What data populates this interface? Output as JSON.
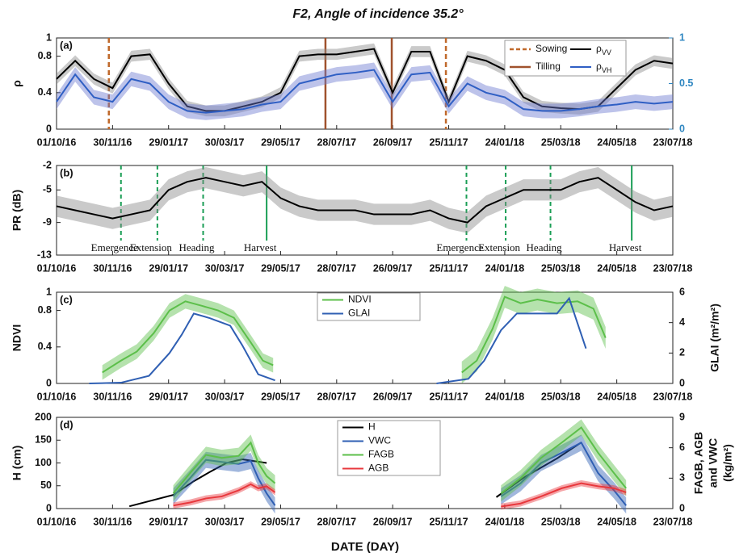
{
  "title": "F2, Angle of incidence 35.2°",
  "xlabel": "DATE (DAY)",
  "chart_data": [
    {
      "type": "line",
      "panel": "(a)",
      "ylabel": "ρ",
      "xlim": [
        "01/10/16",
        "23/07/18"
      ],
      "xticks": [
        "01/10/16",
        "30/11/16",
        "29/01/17",
        "30/03/17",
        "29/05/17",
        "28/07/17",
        "26/09/17",
        "25/11/17",
        "24/01/18",
        "25/03/18",
        "24/05/18",
        "23/07/18"
      ],
      "ylim": [
        0,
        1
      ],
      "yticks": [
        0,
        0.4,
        0.8,
        1
      ],
      "y2lim": [
        0,
        1
      ],
      "y2ticks": [
        0,
        0.5,
        1
      ],
      "y2color": "#2e86c1",
      "events": [
        {
          "name": "Sowing",
          "color": "#c0692b",
          "dashed": true,
          "x": [
            "26/11/16",
            "22/11/17"
          ]
        },
        {
          "name": "Tilling",
          "color": "#a0522d",
          "dashed": false,
          "x": [
            "16/07/17",
            "25/09/17"
          ]
        }
      ],
      "series": [
        {
          "name": "ρVV",
          "color": "#000000",
          "band": "#8a8a8a",
          "x": [
            "01/10/16",
            "21/10/16",
            "10/11/16",
            "30/11/16",
            "20/12/16",
            "09/01/17",
            "29/01/17",
            "18/02/17",
            "10/03/17",
            "30/03/17",
            "19/04/17",
            "09/05/17",
            "29/05/17",
            "18/06/17",
            "08/07/17",
            "28/07/17",
            "17/08/17",
            "06/09/17",
            "26/09/17",
            "16/10/17",
            "05/11/17",
            "25/11/17",
            "15/12/17",
            "04/01/18",
            "24/01/18",
            "13/02/18",
            "05/03/18",
            "25/03/18",
            "14/04/18",
            "04/05/18",
            "24/05/18",
            "13/06/18",
            "03/07/18",
            "23/07/18"
          ],
          "values": [
            0.55,
            0.75,
            0.55,
            0.45,
            0.8,
            0.82,
            0.5,
            0.25,
            0.2,
            0.2,
            0.25,
            0.3,
            0.4,
            0.8,
            0.82,
            0.82,
            0.85,
            0.88,
            0.4,
            0.85,
            0.85,
            0.3,
            0.8,
            0.75,
            0.65,
            0.35,
            0.25,
            0.23,
            0.22,
            0.25,
            0.45,
            0.65,
            0.75,
            0.72
          ],
          "errors": [
            0.06,
            0.06,
            0.06,
            0.06,
            0.06,
            0.06,
            0.06,
            0.06,
            0.06,
            0.06,
            0.06,
            0.06,
            0.06,
            0.06,
            0.06,
            0.06,
            0.06,
            0.06,
            0.06,
            0.06,
            0.06,
            0.06,
            0.06,
            0.06,
            0.06,
            0.06,
            0.06,
            0.06,
            0.06,
            0.06,
            0.06,
            0.06,
            0.06,
            0.06
          ]
        },
        {
          "name": "ρVH",
          "color": "#2f5fc4",
          "band": "#6c79d0",
          "axis": "y2",
          "x": [
            "01/10/16",
            "21/10/16",
            "10/11/16",
            "30/11/16",
            "20/12/16",
            "09/01/17",
            "29/01/17",
            "18/02/17",
            "10/03/17",
            "30/03/17",
            "19/04/17",
            "09/05/17",
            "29/05/17",
            "18/06/17",
            "08/07/17",
            "28/07/17",
            "17/08/17",
            "06/09/17",
            "26/09/17",
            "16/10/17",
            "05/11/17",
            "25/11/17",
            "15/12/17",
            "04/01/18",
            "24/01/18",
            "13/02/18",
            "05/03/18",
            "25/03/18",
            "14/04/18",
            "04/05/18",
            "24/05/18",
            "13/06/18",
            "03/07/18",
            "23/07/18"
          ],
          "values": [
            0.3,
            0.6,
            0.35,
            0.3,
            0.55,
            0.5,
            0.3,
            0.2,
            0.18,
            0.2,
            0.22,
            0.27,
            0.3,
            0.5,
            0.55,
            0.6,
            0.62,
            0.65,
            0.3,
            0.6,
            0.62,
            0.25,
            0.5,
            0.4,
            0.35,
            0.22,
            0.2,
            0.2,
            0.22,
            0.25,
            0.27,
            0.3,
            0.28,
            0.3
          ],
          "errors": [
            0.08,
            0.08,
            0.08,
            0.08,
            0.08,
            0.08,
            0.08,
            0.08,
            0.08,
            0.08,
            0.08,
            0.08,
            0.08,
            0.08,
            0.08,
            0.08,
            0.08,
            0.08,
            0.08,
            0.08,
            0.08,
            0.08,
            0.08,
            0.08,
            0.08,
            0.08,
            0.08,
            0.08,
            0.08,
            0.08,
            0.08,
            0.08,
            0.08,
            0.08
          ]
        }
      ]
    },
    {
      "type": "line",
      "panel": "(b)",
      "ylabel": "PR (dB)",
      "xlim": [
        "01/10/16",
        "23/07/18"
      ],
      "xticks": [
        "01/10/16",
        "30/11/16",
        "29/01/17",
        "30/03/17",
        "29/05/17",
        "28/07/17",
        "26/09/17",
        "25/11/17",
        "24/01/18",
        "25/03/18",
        "24/05/18",
        "23/07/18"
      ],
      "ylim": [
        -13,
        -2
      ],
      "yticks": [
        -2,
        -5,
        -9,
        -13
      ],
      "phases": [
        {
          "label": "Emergence",
          "x": "09/12/16",
          "dashed": true
        },
        {
          "label": "Extension",
          "x": "17/01/17",
          "dashed": true
        },
        {
          "label": "Heading",
          "x": "07/03/17",
          "dashed": true
        },
        {
          "label": "Harvest",
          "x": "14/05/17",
          "dashed": false
        },
        {
          "label": "Emergence",
          "x": "14/12/17",
          "dashed": true
        },
        {
          "label": "Extension",
          "x": "25/01/18",
          "dashed": true
        },
        {
          "label": "Heading",
          "x": "14/03/18",
          "dashed": true
        },
        {
          "label": "Harvest",
          "x": "09/06/18",
          "dashed": false
        }
      ],
      "phase_color": "#1a9e55",
      "series": [
        {
          "color": "#000000",
          "band": "#8a8a8a",
          "x": [
            "01/10/16",
            "21/10/16",
            "10/11/16",
            "30/11/16",
            "20/12/16",
            "09/01/17",
            "29/01/17",
            "18/02/17",
            "10/03/17",
            "30/03/17",
            "19/04/17",
            "09/05/17",
            "29/05/17",
            "18/06/17",
            "08/07/17",
            "28/07/17",
            "17/08/17",
            "06/09/17",
            "26/09/17",
            "16/10/17",
            "05/11/17",
            "25/11/17",
            "15/12/17",
            "04/01/18",
            "24/01/18",
            "13/02/18",
            "05/03/18",
            "25/03/18",
            "14/04/18",
            "04/05/18",
            "24/05/18",
            "13/06/18",
            "03/07/18",
            "23/07/18"
          ],
          "values": [
            -7,
            -7.5,
            -8,
            -8.5,
            -8,
            -7.5,
            -5,
            -4,
            -3.5,
            -4,
            -4.5,
            -4,
            -6,
            -7,
            -7.5,
            -7.5,
            -7.5,
            -8,
            -8,
            -8,
            -7.5,
            -8.5,
            -9,
            -7,
            -6,
            -5,
            -5,
            -5,
            -4,
            -3.5,
            -5,
            -6.5,
            -7.5,
            -7
          ],
          "errors": [
            1.3,
            1.3,
            1.3,
            1.3,
            1.3,
            1.3,
            1.3,
            1.3,
            1.3,
            1.3,
            1.3,
            1.3,
            1.3,
            1.3,
            1.3,
            1.3,
            1.3,
            1.3,
            1.3,
            1.3,
            1.3,
            1.3,
            1.3,
            1.3,
            1.3,
            1.3,
            1.3,
            1.3,
            1.3,
            1.3,
            1.3,
            1.3,
            1.3,
            1.3
          ]
        }
      ]
    },
    {
      "type": "line",
      "panel": "(c)",
      "ylabel": "NDVI",
      "y2label": [
        "GLAI (m²/m²)"
      ],
      "xlim": [
        "01/10/16",
        "23/07/18"
      ],
      "xticks": [
        "01/10/16",
        "30/11/16",
        "29/01/17",
        "30/03/17",
        "29/05/17",
        "28/07/17",
        "26/09/17",
        "25/11/17",
        "24/01/18",
        "25/03/18",
        "24/05/18",
        "23/07/18"
      ],
      "ylim": [
        0,
        1
      ],
      "yticks": [
        0,
        0.4,
        0.8,
        1
      ],
      "y2lim": [
        0,
        6
      ],
      "y2ticks": [
        0,
        2,
        4,
        6
      ],
      "series": [
        {
          "name": "NDVI",
          "color": "#5cbf4a",
          "band": "#5cbf4a",
          "x": [
            "19/11/16",
            "09/12/16",
            "26/12/16",
            "13/01/17",
            "30/01/17",
            "16/02/17",
            "06/03/17",
            "23/03/17",
            "09/04/17",
            "27/04/17",
            "10/05/17",
            "21/05/17",
            null,
            "09/12/17",
            "25/12/17",
            "11/01/18",
            "24/01/18",
            "10/02/18",
            "28/02/18",
            "21/03/18",
            "12/04/18",
            "29/04/18",
            "12/05/18"
          ],
          "values": [
            0.12,
            0.25,
            0.35,
            0.55,
            0.8,
            0.9,
            0.85,
            0.8,
            0.72,
            0.45,
            0.25,
            0.2,
            null,
            0.12,
            0.25,
            0.6,
            0.95,
            0.88,
            0.92,
            0.88,
            0.9,
            0.82,
            0.5
          ],
          "errors": [
            0.08,
            0.08,
            0.08,
            0.08,
            0.08,
            0.08,
            0.08,
            0.08,
            0.08,
            0.08,
            0.08,
            0.08,
            null,
            0.12,
            0.12,
            0.12,
            0.12,
            0.12,
            0.12,
            0.12,
            0.12,
            0.12,
            0.12
          ]
        },
        {
          "name": "GLAI",
          "color": "#2f5fb3",
          "axis": "y2",
          "x": [
            "05/11/16",
            "09/12/16",
            "08/01/17",
            "30/01/17",
            "12/02/17",
            "25/02/17",
            "14/03/17",
            "05/04/17",
            "18/04/17",
            "05/05/17",
            "23/05/17",
            null,
            "12/11/17",
            "16/12/17",
            "02/01/18",
            "20/01/18",
            "06/02/18",
            "21/03/18",
            "03/04/18",
            "21/04/18"
          ],
          "values": [
            0,
            0.05,
            0.5,
            2,
            3.2,
            4.6,
            4.3,
            3.8,
            2.5,
            0.6,
            0.2,
            null,
            0,
            0.3,
            1.5,
            3.5,
            4.6,
            4.6,
            5.6,
            2.3
          ]
        }
      ]
    },
    {
      "type": "line",
      "panel": "(d)",
      "ylabel": "H (cm)",
      "y2label": [
        "FAGB, AGB",
        "and VWC",
        "(kg/m²)"
      ],
      "xlim": [
        "01/10/16",
        "23/07/18"
      ],
      "xticks": [
        "01/10/16",
        "30/11/16",
        "29/01/17",
        "30/03/17",
        "29/05/17",
        "28/07/17",
        "26/09/17",
        "25/11/17",
        "24/01/18",
        "25/03/18",
        "24/05/18",
        "23/07/18"
      ],
      "ylim": [
        0,
        200
      ],
      "yticks": [
        0,
        50,
        100,
        150,
        200
      ],
      "y2lim": [
        0,
        9
      ],
      "y2ticks": [
        0,
        3,
        6,
        9
      ],
      "series": [
        {
          "name": "H",
          "color": "#000000",
          "x": [
            "18/12/16",
            "03/02/17",
            "25/02/17",
            "14/03/17",
            "01/04/17",
            "18/04/17",
            "14/05/17",
            null,
            "15/01/18",
            "15/02/18",
            "21/03/18",
            "16/04/18"
          ],
          "values": [
            5,
            30,
            60,
            80,
            100,
            108,
            100,
            null,
            25,
            70,
            110,
            145
          ]
        },
        {
          "name": "VWC",
          "color": "#2f5fb3",
          "band": "#2f5fb3",
          "axis": "y2",
          "x": [
            "03/02/17",
            "21/02/17",
            "10/03/17",
            "27/03/17",
            "14/04/17",
            "27/04/17",
            "05/05/17",
            "14/05/17",
            "23/05/17",
            null,
            "20/01/18",
            "10/02/18",
            "04/03/18",
            "26/03/18",
            "16/04/18",
            "04/05/18",
            "21/05/18",
            "03/06/18"
          ],
          "values": [
            1.2,
            3,
            4.8,
            4.6,
            4.4,
            4.7,
            3,
            1.5,
            0.3,
            null,
            1.2,
            2.5,
            4.5,
            5.5,
            6.5,
            3.5,
            1.8,
            0.3
          ],
          "errors": [
            0.8,
            0.8,
            0.8,
            0.8,
            0.8,
            0.8,
            0.8,
            0.8,
            0.8,
            null,
            0.8,
            0.8,
            0.8,
            0.8,
            0.8,
            0.8,
            0.8,
            0.8
          ]
        },
        {
          "name": "FAGB",
          "color": "#5cbf4a",
          "band": "#5cbf4a",
          "axis": "y2",
          "x": [
            "03/02/17",
            "21/02/17",
            "10/03/17",
            "27/03/17",
            "14/04/17",
            "27/04/17",
            "05/05/17",
            "14/05/17",
            "23/05/17",
            null,
            "20/01/18",
            "10/02/18",
            "04/03/18",
            "26/03/18",
            "16/04/18",
            "04/05/18",
            "21/05/18",
            "03/06/18"
          ],
          "values": [
            1.5,
            3.5,
            5.3,
            5,
            5.2,
            6.5,
            4.5,
            3.2,
            2.5,
            null,
            1.5,
            3,
            5,
            6.5,
            8,
            5.5,
            3.5,
            2
          ],
          "errors": [
            0.8,
            0.8,
            0.8,
            0.8,
            0.8,
            0.8,
            0.8,
            0.8,
            0.8,
            null,
            0.8,
            0.8,
            0.8,
            0.8,
            0.8,
            0.8,
            0.8,
            0.8
          ]
        },
        {
          "name": "AGB",
          "color": "#e8383d",
          "band": "#e8383d",
          "axis": "y2",
          "x": [
            "03/02/17",
            "21/02/17",
            "10/03/17",
            "27/03/17",
            "14/04/17",
            "27/04/17",
            "05/05/17",
            "14/05/17",
            "23/05/17",
            null,
            "20/01/18",
            "10/02/18",
            "04/03/18",
            "26/03/18",
            "16/04/18",
            "04/05/18",
            "21/05/18",
            "03/06/18"
          ],
          "values": [
            0.3,
            0.6,
            1,
            1.2,
            1.8,
            2.4,
            2,
            2.2,
            1.6,
            null,
            0.2,
            0.5,
            1.2,
            2,
            2.5,
            2.2,
            2,
            1.6
          ],
          "errors": [
            0.3,
            0.3,
            0.3,
            0.3,
            0.3,
            0.3,
            0.3,
            0.3,
            0.3,
            null,
            0.3,
            0.3,
            0.3,
            0.3,
            0.3,
            0.3,
            0.3,
            0.3
          ]
        }
      ]
    }
  ]
}
